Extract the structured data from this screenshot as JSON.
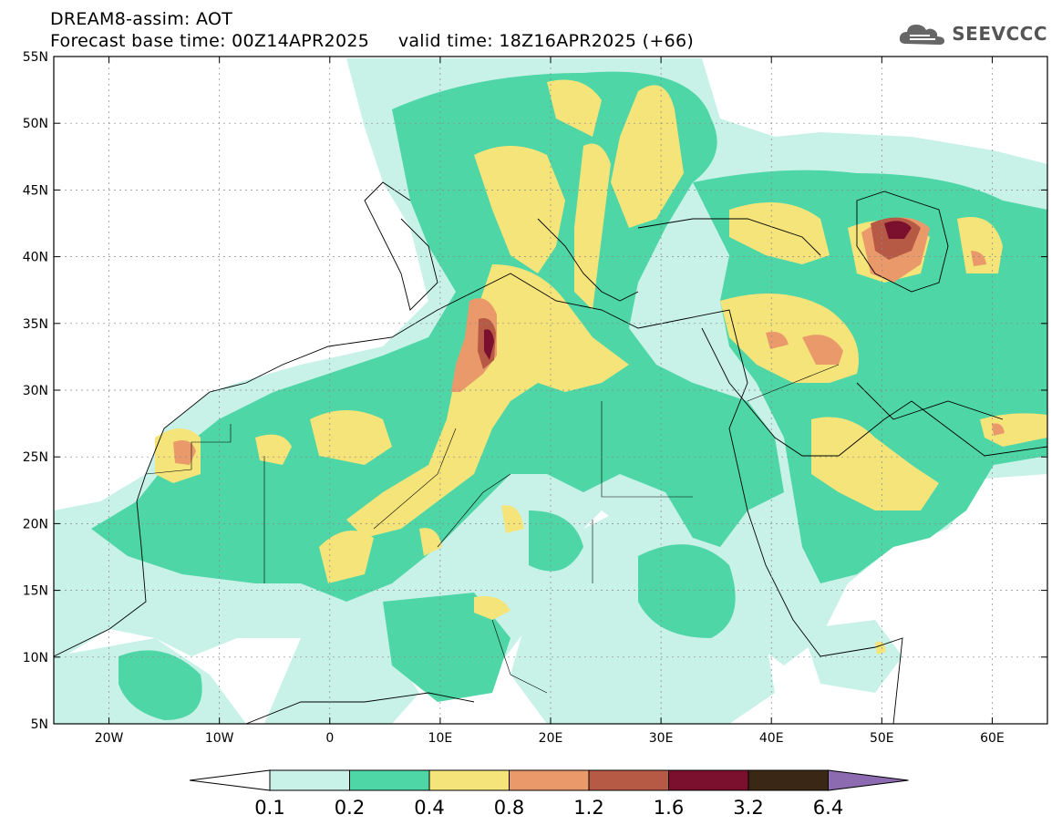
{
  "header": {
    "title": "DREAM8-assim: AOT",
    "subtitle": "Forecast base time: 00Z14APR2025     valid time: 18Z16APR2025 (+66)"
  },
  "logo": {
    "text": "SEEVCCC",
    "icon": "cloud-icon"
  },
  "map": {
    "lon_range": [
      -25,
      65
    ],
    "lat_range": [
      5,
      55
    ],
    "lon_ticks": [
      {
        "value": -20,
        "label": "20W"
      },
      {
        "value": -10,
        "label": "10W"
      },
      {
        "value": 0,
        "label": "0"
      },
      {
        "value": 10,
        "label": "10E"
      },
      {
        "value": 20,
        "label": "20E"
      },
      {
        "value": 30,
        "label": "30E"
      },
      {
        "value": 40,
        "label": "40E"
      },
      {
        "value": 50,
        "label": "50E"
      },
      {
        "value": 60,
        "label": "60E"
      }
    ],
    "lat_ticks": [
      {
        "value": 55,
        "label": "55N"
      },
      {
        "value": 50,
        "label": "50N"
      },
      {
        "value": 45,
        "label": "45N"
      },
      {
        "value": 40,
        "label": "40N"
      },
      {
        "value": 35,
        "label": "35N"
      },
      {
        "value": 30,
        "label": "30N"
      },
      {
        "value": 25,
        "label": "25N"
      },
      {
        "value": 20,
        "label": "20N"
      },
      {
        "value": 15,
        "label": "15N"
      },
      {
        "value": 10,
        "label": "10N"
      },
      {
        "value": 5,
        "label": "5N"
      }
    ],
    "grid": true
  },
  "colorbar": {
    "colors": [
      "#ffffff",
      "#c8f2e8",
      "#4ed6a6",
      "#f5e47a",
      "#ea9a6a",
      "#b75a45",
      "#7a0f2e",
      "#3b2715",
      "#8c6bb0"
    ],
    "labels": [
      "0.1",
      "0.2",
      "0.4",
      "0.8",
      "1.2",
      "1.6",
      "3.2",
      "6.4"
    ]
  }
}
